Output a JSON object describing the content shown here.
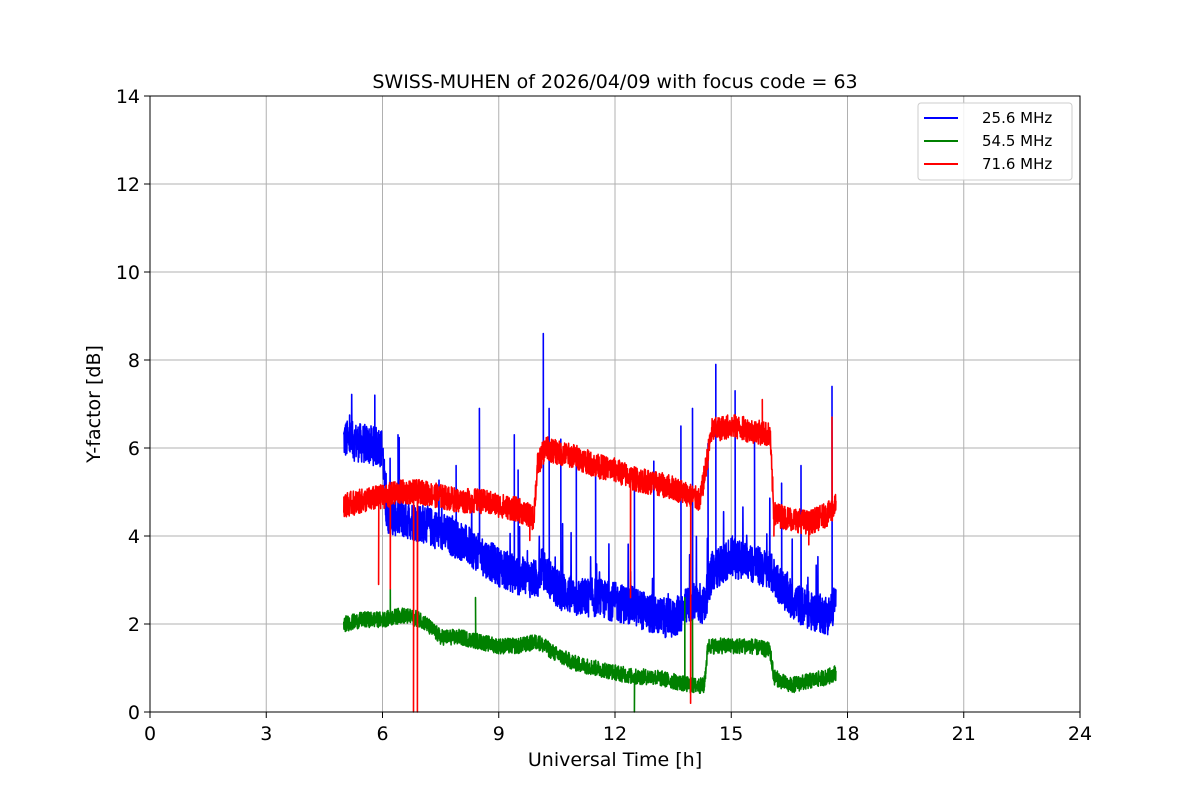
{
  "chart_data": {
    "type": "line",
    "title": "SWISS-MUHEN of 2026/04/09 with focus code = 63",
    "xlabel": "Universal Time [h]",
    "ylabel": "Y-factor [dB]",
    "xlim": [
      0,
      24
    ],
    "ylim": [
      0,
      14
    ],
    "xticks": [
      0,
      3,
      6,
      9,
      12,
      15,
      18,
      21,
      24
    ],
    "yticks": [
      0,
      2,
      4,
      6,
      8,
      10,
      12,
      14
    ],
    "grid": true,
    "legend_position": "top-right",
    "series": [
      {
        "name": "25.6 MHz",
        "color": "#0000ff",
        "x": [
          5.0,
          5.5,
          6.0,
          6.1,
          6.5,
          7.0,
          7.5,
          8.0,
          8.5,
          9.0,
          9.5,
          10.0,
          10.1,
          10.5,
          11.0,
          11.5,
          12.0,
          12.5,
          13.0,
          13.5,
          14.0,
          14.3,
          14.5,
          15.0,
          15.5,
          16.0,
          16.5,
          17.0,
          17.5,
          17.7
        ],
        "y": [
          6.2,
          6.1,
          6.0,
          4.5,
          4.4,
          4.3,
          4.1,
          3.9,
          3.6,
          3.3,
          3.1,
          3.0,
          3.3,
          2.8,
          2.6,
          2.6,
          2.5,
          2.4,
          2.2,
          2.1,
          2.5,
          2.4,
          3.2,
          3.5,
          3.4,
          3.2,
          2.6,
          2.3,
          2.2,
          2.5
        ],
        "spikes": [
          [
            5.8,
            7.2
          ],
          [
            6.4,
            6.3
          ],
          [
            7.9,
            5.6
          ],
          [
            8.5,
            6.9
          ],
          [
            9.4,
            6.3
          ],
          [
            9.5,
            5.5
          ],
          [
            10.15,
            8.6
          ],
          [
            10.3,
            6.9
          ],
          [
            10.6,
            6.2
          ],
          [
            11.0,
            5.9
          ],
          [
            11.5,
            5.7
          ],
          [
            12.5,
            5.4
          ],
          [
            13.0,
            5.7
          ],
          [
            13.7,
            6.5
          ],
          [
            14.0,
            6.9
          ],
          [
            14.4,
            6.1
          ],
          [
            14.6,
            7.9
          ],
          [
            15.1,
            7.3
          ],
          [
            15.6,
            6.2
          ],
          [
            16.3,
            5.2
          ],
          [
            16.8,
            5.6
          ],
          [
            17.6,
            7.4
          ]
        ]
      },
      {
        "name": "54.5 MHz",
        "color": "#008000",
        "x": [
          5.0,
          5.5,
          6.0,
          6.5,
          7.0,
          7.5,
          8.0,
          8.5,
          9.0,
          9.5,
          10.0,
          10.5,
          11.0,
          11.5,
          12.0,
          12.5,
          13.0,
          13.5,
          14.0,
          14.3,
          14.4,
          15.0,
          15.5,
          16.0,
          16.1,
          16.5,
          17.0,
          17.5,
          17.7
        ],
        "y": [
          2.0,
          2.1,
          2.1,
          2.2,
          2.1,
          1.7,
          1.7,
          1.6,
          1.5,
          1.5,
          1.6,
          1.3,
          1.1,
          1.0,
          0.9,
          0.8,
          0.8,
          0.7,
          0.6,
          0.6,
          1.5,
          1.5,
          1.5,
          1.4,
          0.8,
          0.6,
          0.7,
          0.8,
          0.9
        ],
        "spikes": [
          [
            6.2,
            2.8
          ],
          [
            8.4,
            2.6
          ],
          [
            12.5,
            0.0
          ],
          [
            13.8,
            2.6
          ],
          [
            14.0,
            2.1
          ]
        ]
      },
      {
        "name": "71.6 MHz",
        "color": "#ff0000",
        "x": [
          5.0,
          5.5,
          6.0,
          6.5,
          7.0,
          7.5,
          8.0,
          8.5,
          9.0,
          9.5,
          9.9,
          10.0,
          10.2,
          10.5,
          11.0,
          11.5,
          12.0,
          12.5,
          13.0,
          13.5,
          14.0,
          14.2,
          14.5,
          15.0,
          15.5,
          16.0,
          16.1,
          16.5,
          17.0,
          17.5,
          17.7
        ],
        "y": [
          4.7,
          4.8,
          4.9,
          5.0,
          5.0,
          4.9,
          4.8,
          4.8,
          4.7,
          4.6,
          4.4,
          5.6,
          6.0,
          5.9,
          5.8,
          5.6,
          5.5,
          5.3,
          5.2,
          5.1,
          4.9,
          4.8,
          6.4,
          6.5,
          6.4,
          6.3,
          4.5,
          4.4,
          4.3,
          4.5,
          4.7
        ],
        "spikes": [
          [
            5.9,
            2.9
          ],
          [
            6.2,
            2.8
          ],
          [
            6.8,
            0.0
          ],
          [
            6.9,
            0.0
          ],
          [
            9.8,
            3.9
          ],
          [
            12.4,
            2.6
          ],
          [
            13.95,
            0.2
          ],
          [
            15.8,
            7.1
          ],
          [
            16.1,
            4.0
          ],
          [
            17.0,
            3.8
          ],
          [
            17.6,
            6.7
          ]
        ]
      }
    ]
  }
}
